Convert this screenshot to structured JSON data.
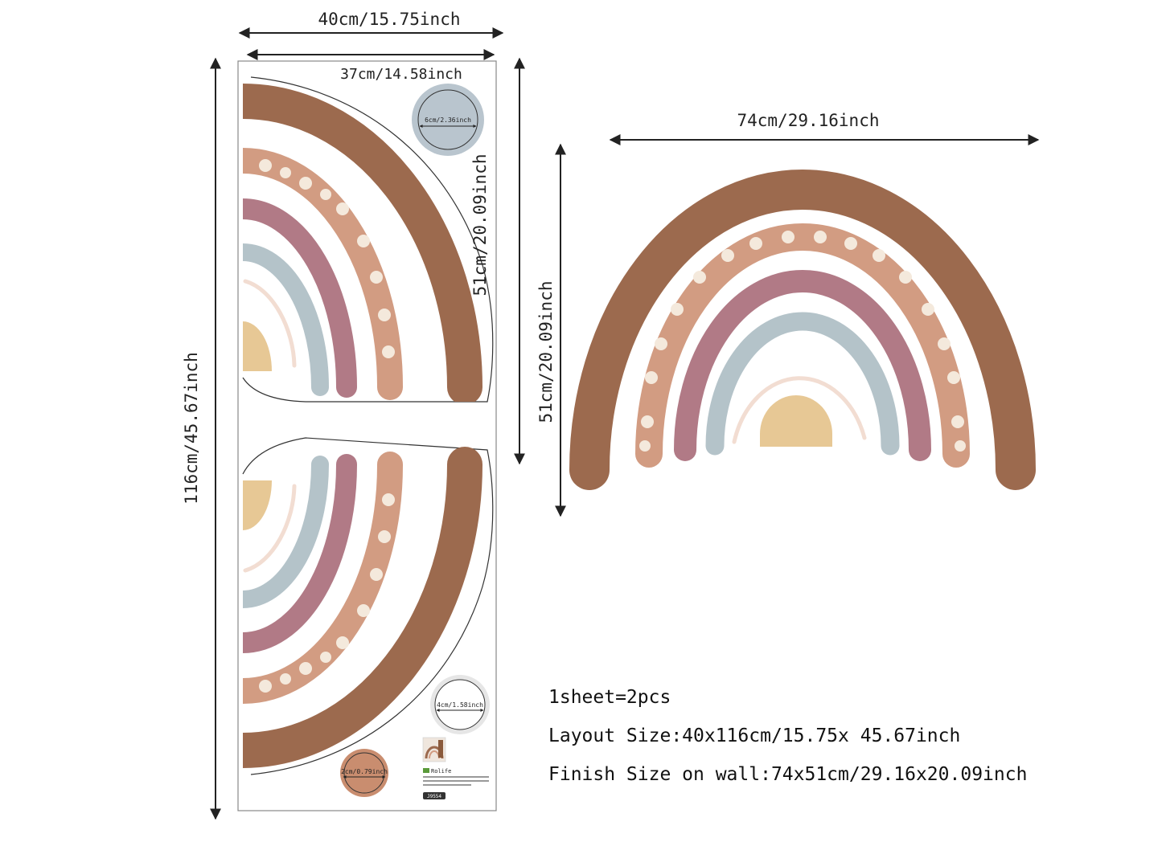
{
  "colors": {
    "brown": "#9c6a4e",
    "dotted": "#d29c82",
    "dots": "#f4e9dc",
    "mauve": "#b17a86",
    "blue": "#b4c3c9",
    "sun": "#e7c895",
    "leaf": "#f2ddd2",
    "swatch_blue": "#b9c5ce",
    "swatch_gray": "#e6e6e6",
    "swatch_brown": "#c98d6f"
  },
  "dims": {
    "sheet_width": "40cm/15.75inch",
    "inner_width": "37cm/14.58inch",
    "sheet_height": "116cm/45.67inch",
    "half_height": "51cm/20.09inch",
    "wall_width": "74cm/29.16inch",
    "wall_height": "51cm/20.09inch",
    "circle_large": "6cm/2.36inch",
    "circle_medium": "4cm/1.58inch",
    "circle_small": "2cm/0.79inch"
  },
  "info": {
    "line1": "1sheet=2pcs",
    "line2": "Layout Size:40x116cm/15.75x 45.67inch",
    "line3": "Finish Size on wall:74x51cm/29.16x20.09inch"
  },
  "label": {
    "brand": "Rolife",
    "code": "J9554"
  }
}
